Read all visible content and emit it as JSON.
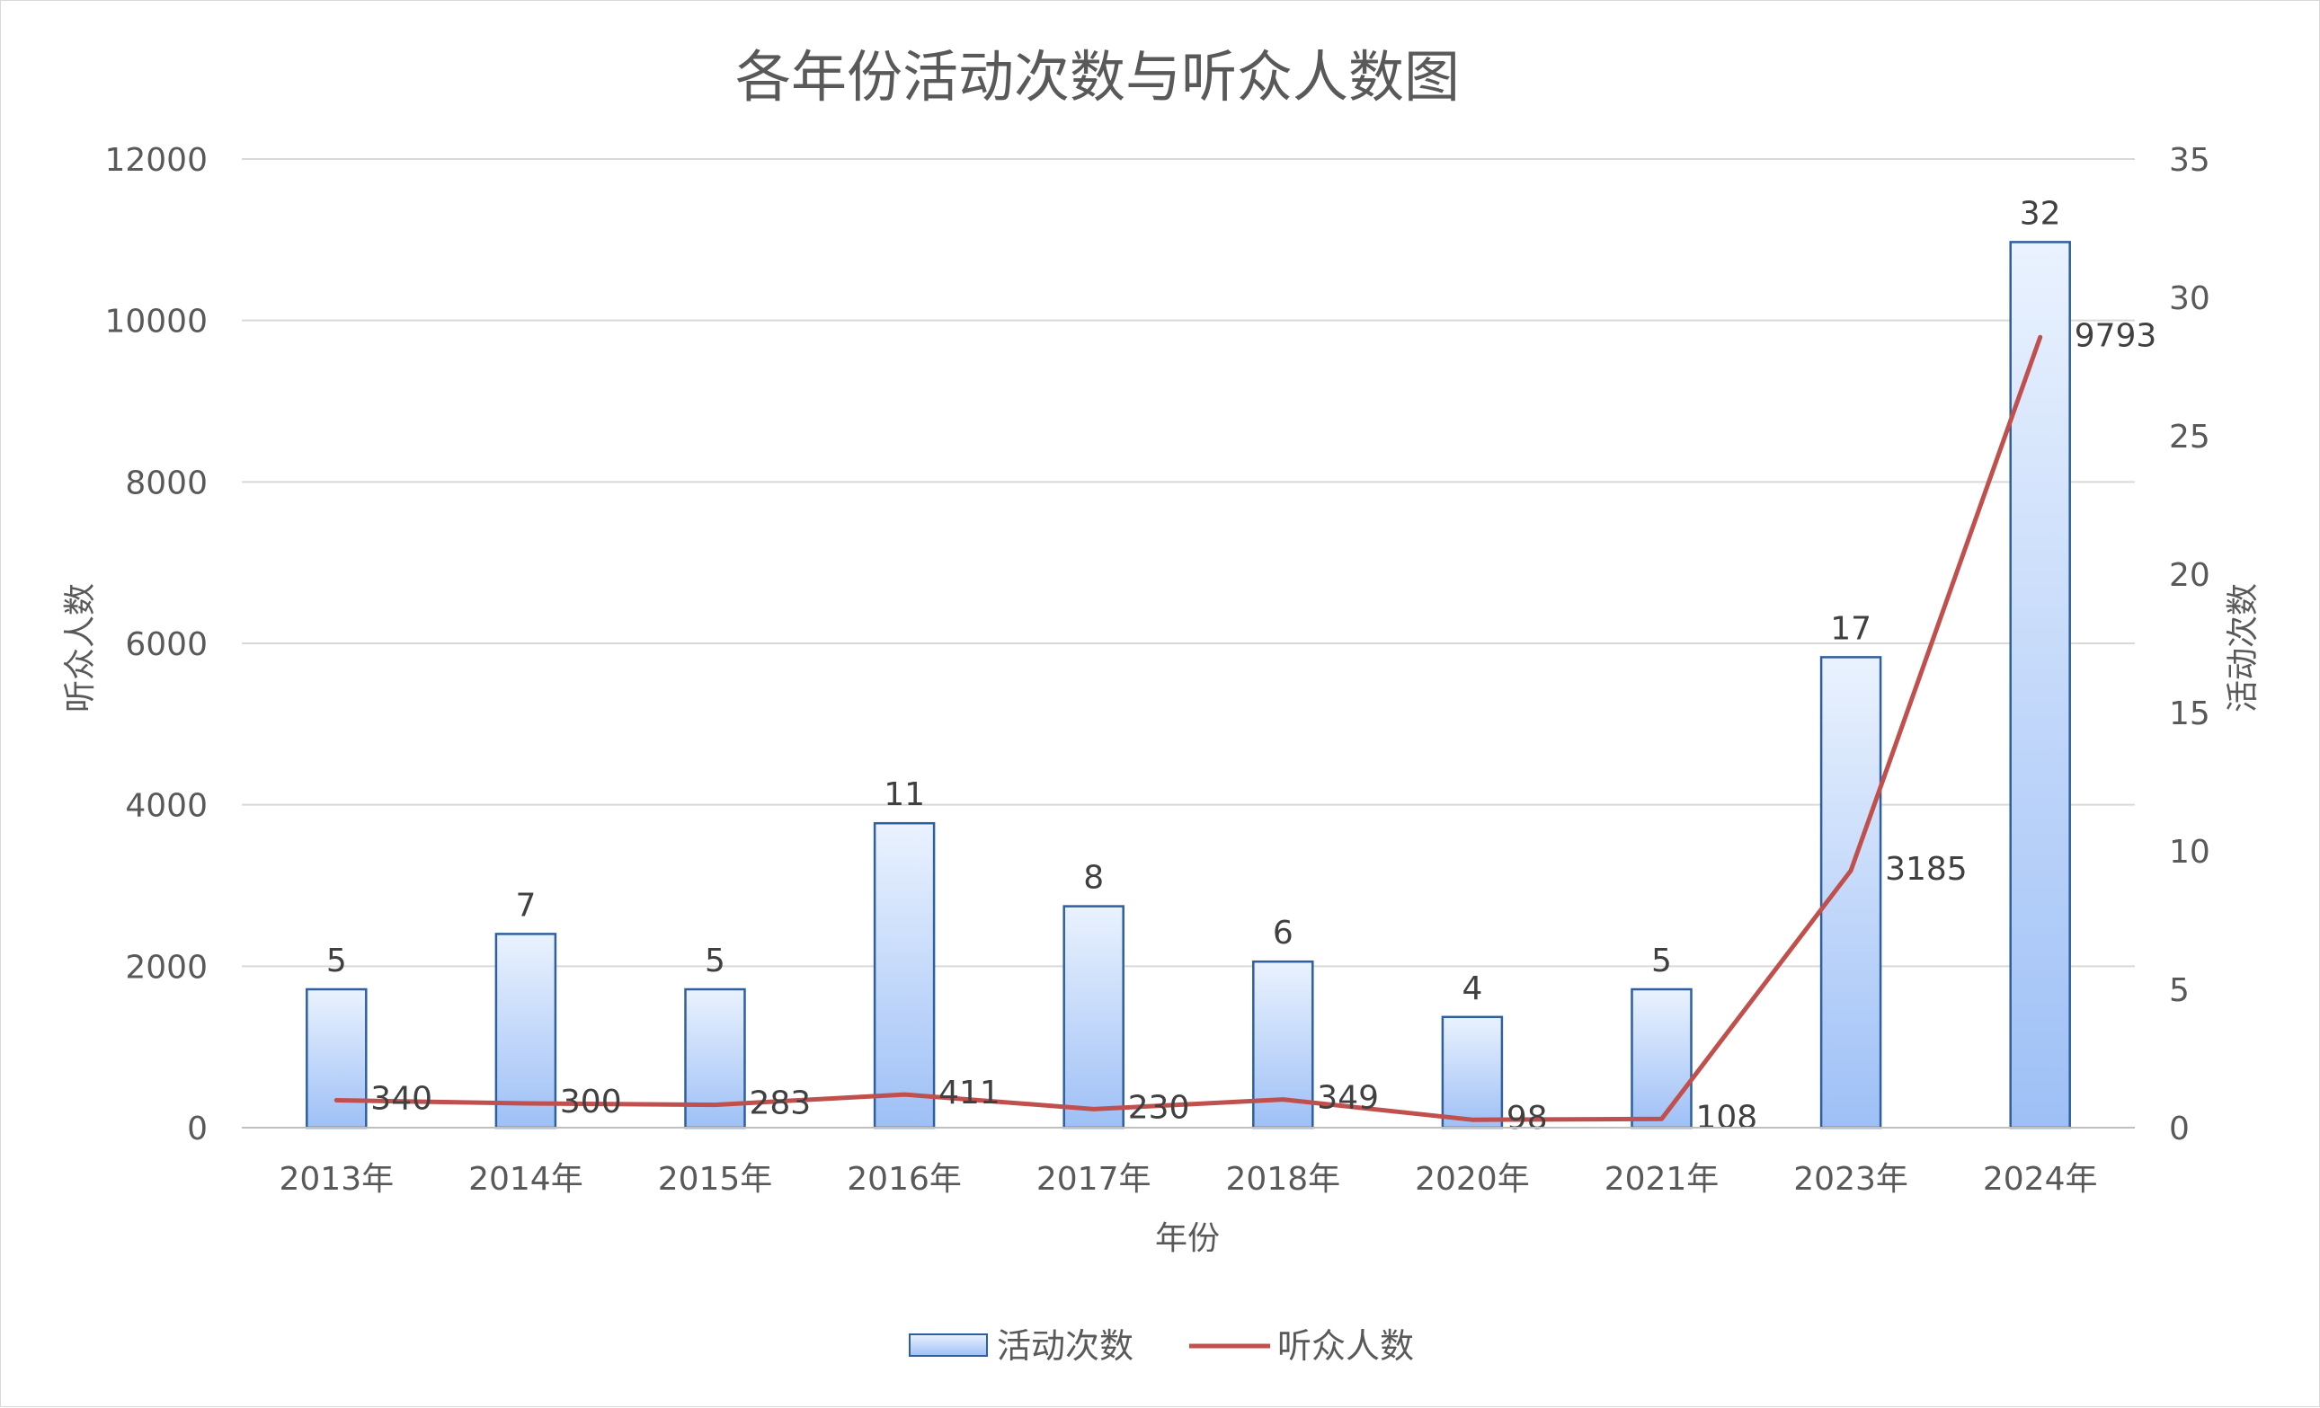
{
  "chart_data": {
    "type": "bar",
    "title": "各年份活动次数与听众人数图",
    "xlabel": "年份",
    "ylabel": "听众人数",
    "y2label": "活动次数",
    "categories": [
      "2013年",
      "2014年",
      "2015年",
      "2016年",
      "2017年",
      "2018年",
      "2020年",
      "2021年",
      "2023年",
      "2024年"
    ],
    "series": [
      {
        "name": "活动次数",
        "type": "bar",
        "axis": "right",
        "values": [
          5,
          7,
          5,
          11,
          8,
          6,
          4,
          5,
          17,
          32
        ],
        "color": "#a8c6f5",
        "border_color": "#2e5f9e"
      },
      {
        "name": "听众人数",
        "type": "line",
        "axis": "left",
        "values": [
          340,
          300,
          283,
          411,
          230,
          349,
          98,
          108,
          3185,
          9793
        ],
        "color": "#c0504d"
      }
    ],
    "ylim": [
      0,
      12000
    ],
    "yticks": [
      "0",
      "2000",
      "4000",
      "6000",
      "8000",
      "10000",
      "12000"
    ],
    "y2lim": [
      0,
      35
    ],
    "y2ticks": [
      "0",
      "5",
      "10",
      "15",
      "20",
      "25",
      "30",
      "35"
    ],
    "grid": true,
    "legend_position": "bottom"
  }
}
